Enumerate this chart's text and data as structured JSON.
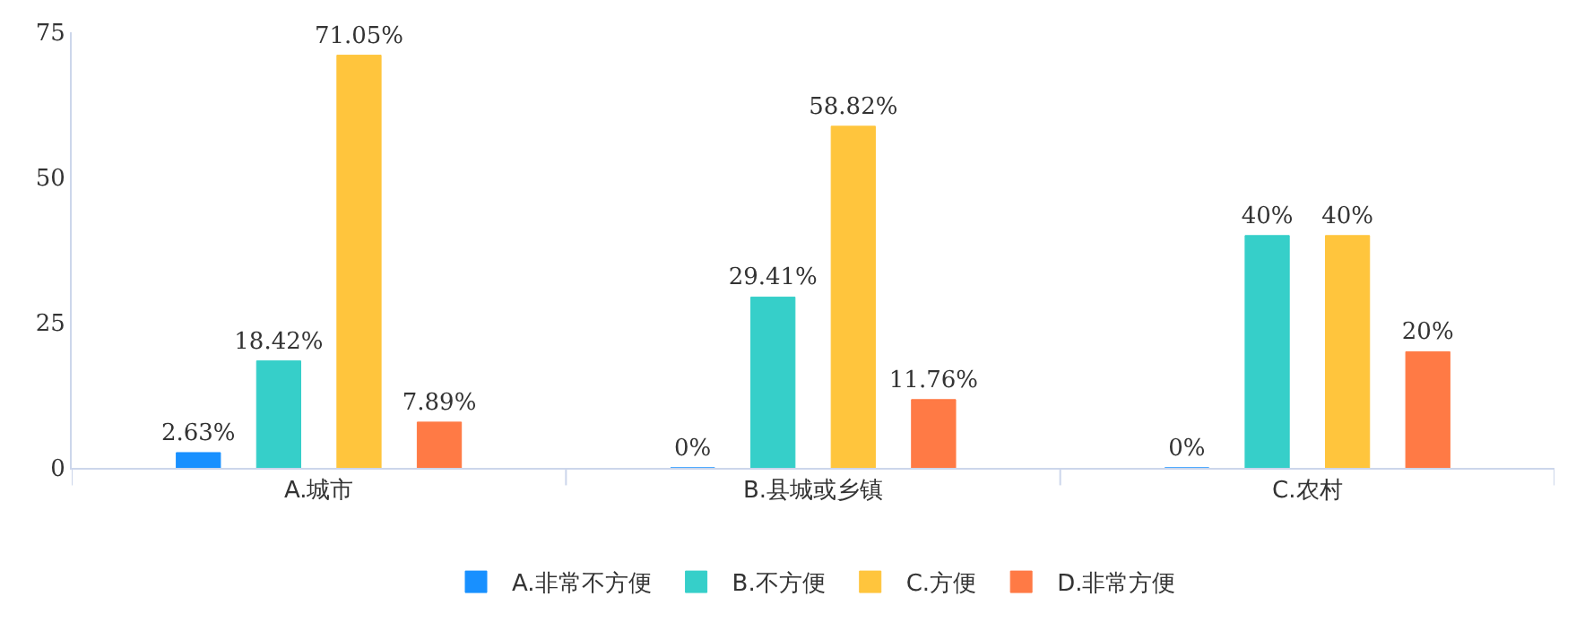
{
  "chart_data": {
    "type": "bar",
    "categories": [
      "A.城市",
      "B.县城或乡镇",
      "C.农村"
    ],
    "series": [
      {
        "name": "A.非常不方便",
        "color": "#1890ff",
        "values": [
          2.63,
          0,
          0
        ],
        "value_labels": [
          "2.63%",
          "0%",
          "0%"
        ]
      },
      {
        "name": "B.不方便",
        "color": "#36cfc9",
        "values": [
          18.42,
          29.41,
          40
        ],
        "value_labels": [
          "18.42%",
          "29.41%",
          "40%"
        ]
      },
      {
        "name": "C.方便",
        "color": "#ffc53d",
        "values": [
          71.05,
          58.82,
          40
        ],
        "value_labels": [
          "71.05%",
          "58.82%",
          "40%"
        ]
      },
      {
        "name": "D.非常方便",
        "color": "#ff7a45",
        "values": [
          7.89,
          11.76,
          20
        ],
        "value_labels": [
          "7.89%",
          "11.76%",
          "20%"
        ]
      }
    ],
    "ylim": [
      0,
      75
    ],
    "yticks": [
      0,
      25,
      50,
      75
    ],
    "legend": "bottom"
  }
}
